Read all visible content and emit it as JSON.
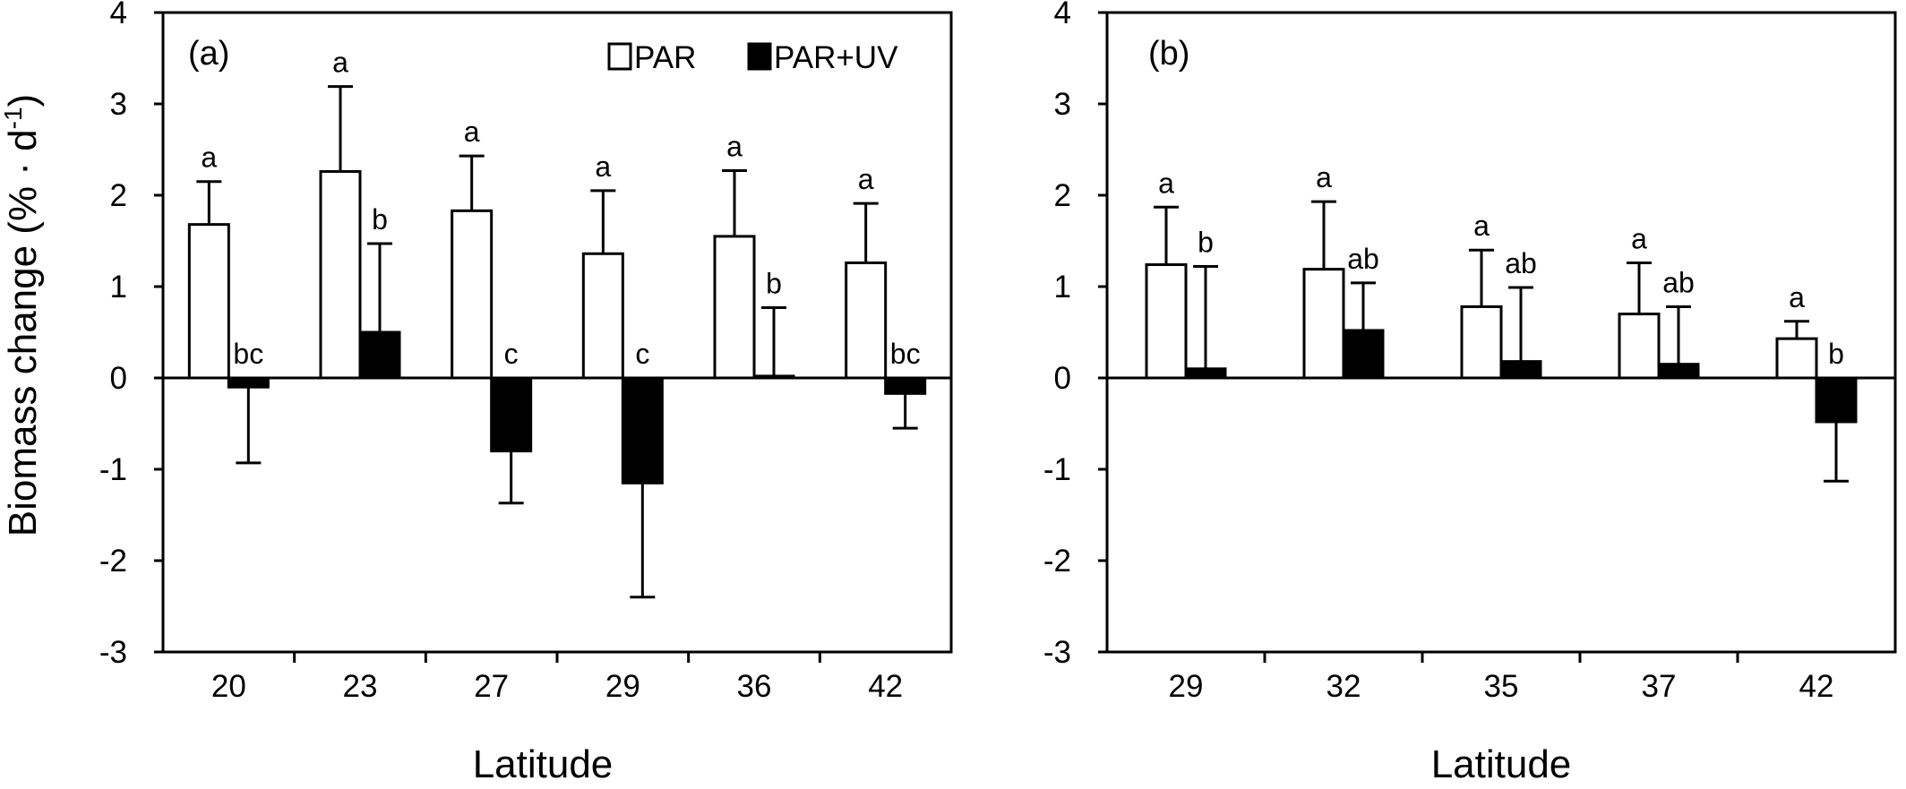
{
  "figure": {
    "ylabel_main": "Biomass change (% · d",
    "ylabel_sup": "-1",
    "ylabel_close": ")",
    "legend": [
      {
        "label": "PAR",
        "color": "#ffffff"
      },
      {
        "label": "PAR+UV",
        "color": "#000000"
      }
    ]
  },
  "chart_data": [
    {
      "type": "bar",
      "panel_label": "(a)",
      "xlabel": "Latitude",
      "ylabel": "Biomass change (% · d-1)",
      "ylim": [
        -3,
        4
      ],
      "yticks": [
        -3,
        -2,
        -1,
        0,
        1,
        2,
        3,
        4
      ],
      "categories": [
        "20",
        "23",
        "27",
        "29",
        "36",
        "42"
      ],
      "legend_position": "top-right",
      "series": [
        {
          "name": "PAR",
          "color": "#ffffff",
          "values": [
            1.68,
            2.26,
            1.83,
            1.36,
            1.55,
            1.26
          ],
          "error": [
            0.47,
            0.93,
            0.6,
            0.69,
            0.72,
            0.65
          ],
          "letters": [
            "a",
            "a",
            "a",
            "a",
            "a",
            "a"
          ]
        },
        {
          "name": "PAR+UV",
          "color": "#000000",
          "values": [
            -0.1,
            0.5,
            -0.8,
            -1.15,
            0.02,
            -0.17
          ],
          "error": [
            0.83,
            0.97,
            0.57,
            1.25,
            0.75,
            0.38
          ],
          "letters": [
            "bc",
            "b",
            "c",
            "c",
            "b",
            "bc"
          ]
        }
      ]
    },
    {
      "type": "bar",
      "panel_label": "(b)",
      "xlabel": "Latitude",
      "ylim": [
        -3,
        4
      ],
      "yticks": [
        -3,
        -2,
        -1,
        0,
        1,
        2,
        3,
        4
      ],
      "categories": [
        "29",
        "32",
        "35",
        "37",
        "42"
      ],
      "series": [
        {
          "name": "PAR",
          "color": "#ffffff",
          "values": [
            1.24,
            1.19,
            0.78,
            0.7,
            0.43
          ],
          "error": [
            0.63,
            0.74,
            0.62,
            0.56,
            0.19
          ],
          "letters": [
            "a",
            "a",
            "a",
            "a",
            "a"
          ]
        },
        {
          "name": "PAR+UV",
          "color": "#000000",
          "values": [
            0.1,
            0.52,
            0.18,
            0.15,
            -0.48
          ],
          "error": [
            1.12,
            0.52,
            0.81,
            0.63,
            0.65
          ],
          "letters": [
            "b",
            "ab",
            "ab",
            "ab",
            "b"
          ]
        }
      ]
    }
  ]
}
